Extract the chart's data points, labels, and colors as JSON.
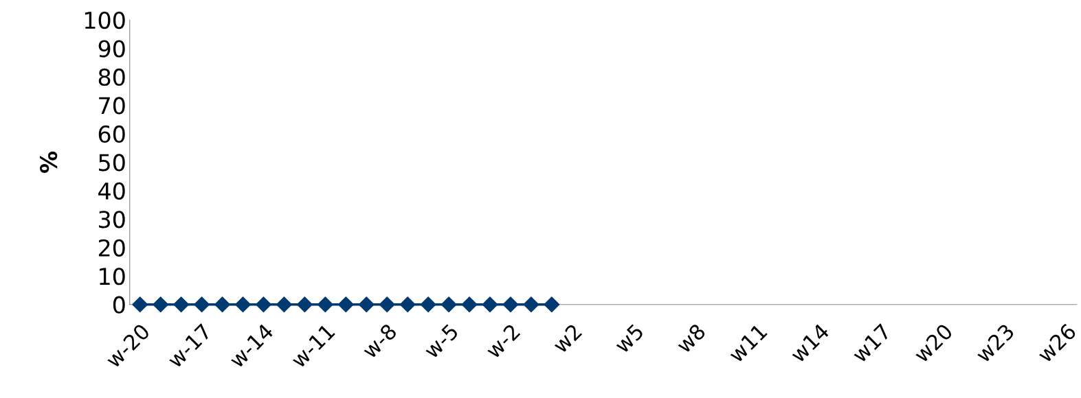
{
  "chart_data": {
    "type": "line",
    "ylabel": "%",
    "categories": [
      "w-20",
      null,
      null,
      "w-17",
      null,
      null,
      "w-14",
      null,
      null,
      "w-11",
      null,
      null,
      "w-8",
      null,
      null,
      "w-5",
      null,
      null,
      "w-2",
      null,
      null,
      "w2",
      null,
      null,
      "w5",
      null,
      null,
      "w8",
      null,
      null,
      "w11",
      null,
      null,
      "w14",
      null,
      null,
      "w17",
      null,
      null,
      "w20",
      null,
      null,
      "w23",
      null,
      null,
      "w26"
    ],
    "series": [
      {
        "color": "#003a70",
        "values": [
          0,
          0,
          0,
          0,
          0,
          0,
          0,
          0,
          0,
          0,
          0,
          0,
          0,
          0,
          0,
          0,
          0,
          0,
          0,
          0,
          0,
          null,
          null,
          null,
          null,
          null,
          null,
          null,
          null,
          null,
          null,
          null,
          null,
          null,
          null,
          null,
          null,
          null,
          null,
          null,
          null,
          null,
          null,
          null,
          null,
          null
        ]
      }
    ],
    "ylim": [
      0,
      100
    ],
    "yticks": [
      0,
      10,
      20,
      30,
      40,
      50,
      60,
      70,
      80,
      90,
      100
    ],
    "grid": false,
    "legend": false,
    "marker": "diamond",
    "line_style": "solid"
  }
}
